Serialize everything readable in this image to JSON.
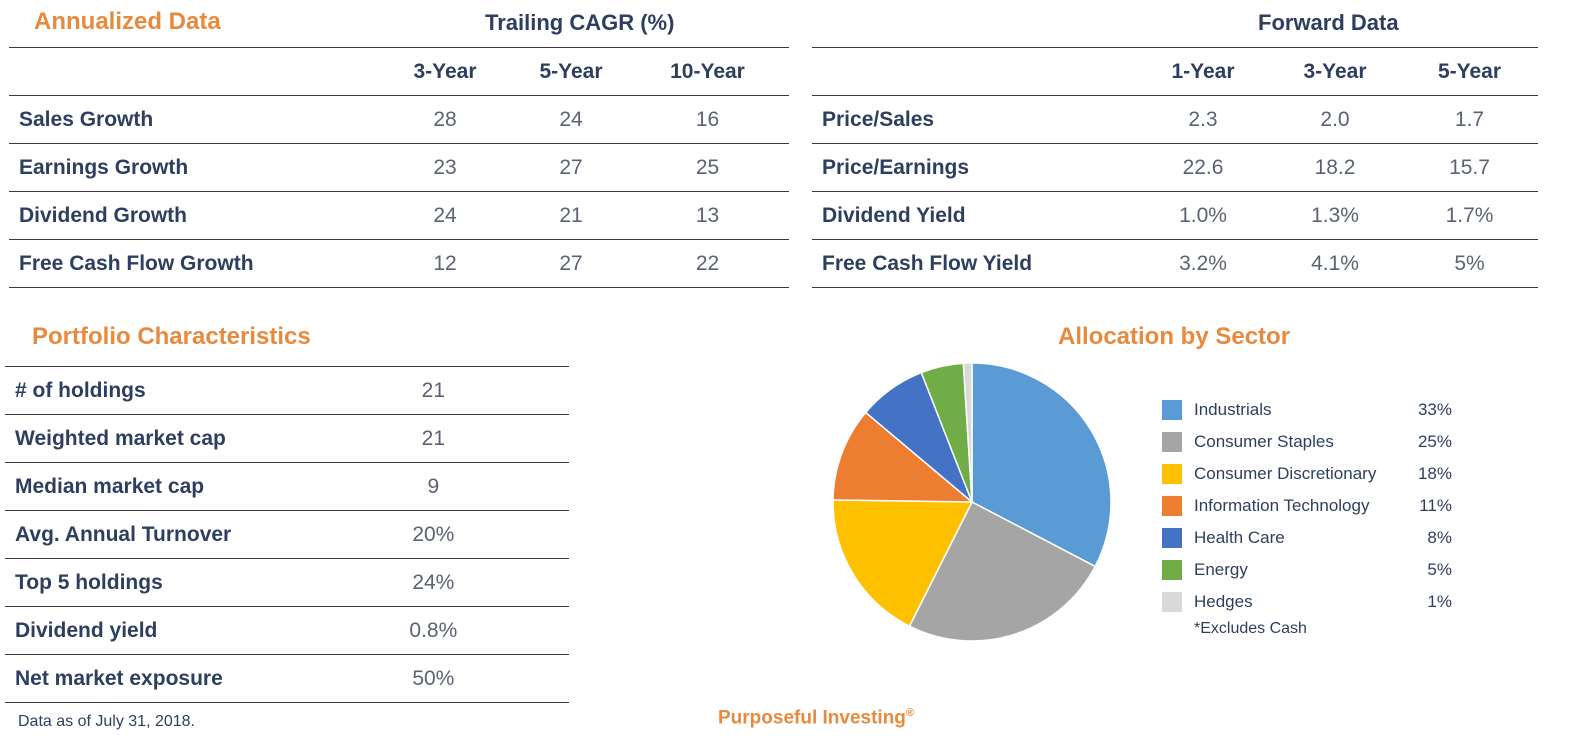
{
  "annualized": {
    "title": "Annualized Data",
    "group_header": "Trailing CAGR (%)",
    "columns": [
      "3-Year",
      "5-Year",
      "10-Year"
    ],
    "rows": [
      {
        "label": "Sales Growth",
        "values": [
          "28",
          "24",
          "16"
        ]
      },
      {
        "label": "Earnings Growth",
        "values": [
          "23",
          "27",
          "25"
        ]
      },
      {
        "label": "Dividend Growth",
        "values": [
          "24",
          "21",
          "13"
        ]
      },
      {
        "label": "Free Cash Flow Growth",
        "values": [
          "12",
          "27",
          "22"
        ]
      }
    ]
  },
  "forward": {
    "title": "Forward Data",
    "columns": [
      "1-Year",
      "3-Year",
      "5-Year"
    ],
    "rows": [
      {
        "label": "Price/Sales",
        "values": [
          "2.3",
          "2.0",
          "1.7"
        ]
      },
      {
        "label": "Price/Earnings",
        "values": [
          "22.6",
          "18.2",
          "15.7"
        ]
      },
      {
        "label": "Dividend Yield",
        "values": [
          "1.0%",
          "1.3%",
          "1.7%"
        ]
      },
      {
        "label": "Free Cash Flow Yield",
        "values": [
          "3.2%",
          "4.1%",
          "5%"
        ]
      }
    ]
  },
  "portfolio": {
    "title": "Portfolio Characteristics",
    "rows": [
      {
        "label": "# of holdings",
        "value": "21"
      },
      {
        "label": "Weighted market cap",
        "value": "21"
      },
      {
        "label": "Median market cap",
        "value": "9"
      },
      {
        "label": "Avg. Annual Turnover",
        "value": "20%"
      },
      {
        "label": "Top 5 holdings",
        "value": "24%"
      },
      {
        "label": "Dividend yield",
        "value": "0.8%"
      },
      {
        "label": "Net market exposure",
        "value": "50%"
      }
    ]
  },
  "chart_data": {
    "type": "pie",
    "title": "Allocation by Sector",
    "categories": [
      "Industrials",
      "Consumer Staples",
      "Consumer Discretionary",
      "Information Technology",
      "Health Care",
      "Energy",
      "Hedges"
    ],
    "values": [
      33,
      25,
      18,
      11,
      8,
      5,
      1
    ],
    "labels": [
      "33%",
      "25%",
      "18%",
      "11%",
      "8%",
      "5%",
      "1%"
    ],
    "colors": [
      "#5b9bd5",
      "#a5a5a5",
      "#ffc000",
      "#ed7d31",
      "#4472c4",
      "#70ad47",
      "#d9d9d9"
    ],
    "legend": "right",
    "note": "*Excludes Cash"
  },
  "footer": {
    "as_of": "Data as of July 31, 2018.",
    "brand": "Purposeful Investing",
    "brand_mark": "®"
  }
}
